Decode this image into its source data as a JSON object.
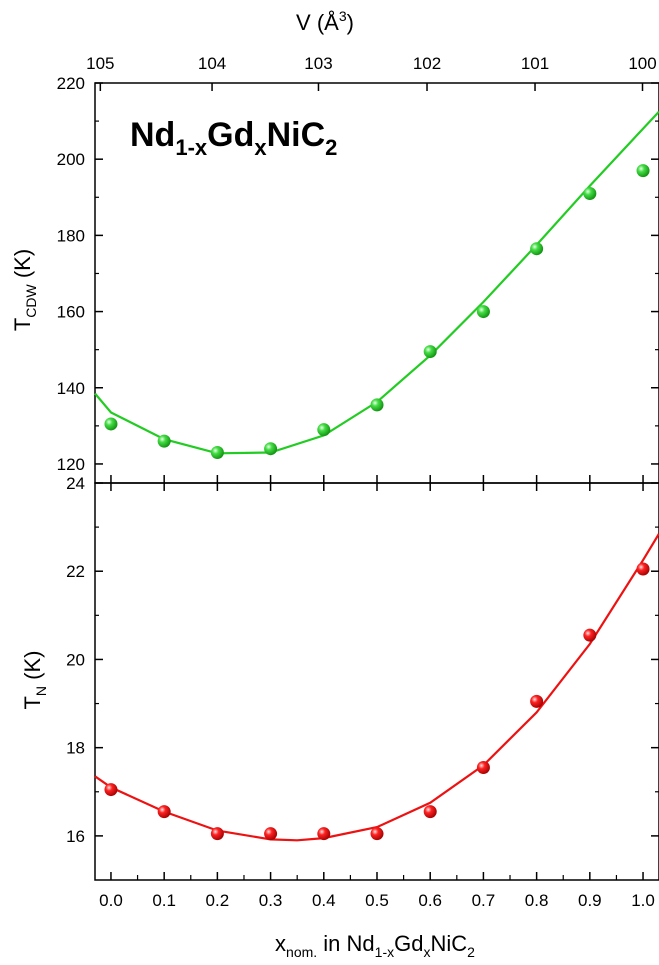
{
  "chart_data": [
    {
      "type": "scatter",
      "panel": "top",
      "title_main": "Nd",
      "title_sub1": "1-x",
      "title_mid": "Gd",
      "title_sub2": "x",
      "title_end": "NiC",
      "title_sub3": "2",
      "ylabel_main": "T",
      "ylabel_sub": "CDW",
      "ylabel_unit": " (K)",
      "top_axis_label_main": "V (Å",
      "top_axis_label_sup": "3",
      "top_axis_label_end": ")",
      "top_ticks": [
        {
          "label": "105",
          "x": -0.02
        },
        {
          "label": "104",
          "x": 0.19
        },
        {
          "label": "103",
          "x": 0.39
        },
        {
          "label": "102",
          "x": 0.594
        },
        {
          "label": "101",
          "x": 0.797
        },
        {
          "label": "100",
          "x": 0.999
        }
      ],
      "ylim": [
        115,
        220
      ],
      "yticks": [
        120,
        140,
        160,
        180,
        200,
        220
      ],
      "color": "#22cc22",
      "series": [
        {
          "x": [
            0.0,
            0.1,
            0.2,
            0.3,
            0.4,
            0.5,
            0.6,
            0.7,
            0.8,
            0.9,
            1.0
          ],
          "y": [
            130.5,
            126,
            123,
            124,
            129,
            135.5,
            149.5,
            160,
            176.5,
            191,
            197
          ]
        }
      ],
      "fit": {
        "x": [
          -0.03,
          0.0,
          0.1,
          0.2,
          0.3,
          0.4,
          0.5,
          0.6,
          0.7,
          0.8,
          0.9,
          1.0,
          1.03
        ],
        "y": [
          138.5,
          133.5,
          126.5,
          122.8,
          123.0,
          127.5,
          136.3,
          148.5,
          162.5,
          177.5,
          193.0,
          208.0,
          212.5
        ]
      }
    },
    {
      "type": "scatter",
      "panel": "bottom",
      "ylabel_main": "T",
      "ylabel_sub": "N",
      "ylabel_unit": " (K)",
      "xlabel_main": "x",
      "xlabel_sub": "nom.",
      "xlabel_mid": " in Nd",
      "xlabel_sub2": "1-x",
      "xlabel_gd": "Gd",
      "xlabel_sub3": "x",
      "xlabel_end": "NiC",
      "xlabel_sub4": "2",
      "xlim": [
        -0.03,
        1.03
      ],
      "xticks": [
        "0.0",
        "0.1",
        "0.2",
        "0.3",
        "0.4",
        "0.5",
        "0.6",
        "0.7",
        "0.8",
        "0.9",
        "1.0"
      ],
      "ylim": [
        15,
        24
      ],
      "yticks": [
        16,
        18,
        20,
        22,
        24
      ],
      "color": "#ee1111",
      "series": [
        {
          "x": [
            0.0,
            0.1,
            0.2,
            0.3,
            0.4,
            0.5,
            0.6,
            0.7,
            0.8,
            0.9,
            1.0
          ],
          "y": [
            17.05,
            16.55,
            16.05,
            16.05,
            16.05,
            16.05,
            16.55,
            17.55,
            19.05,
            20.55,
            22.05
          ]
        }
      ],
      "fit": {
        "x": [
          -0.03,
          0.0,
          0.1,
          0.2,
          0.3,
          0.35,
          0.4,
          0.5,
          0.6,
          0.7,
          0.8,
          0.9,
          1.0,
          1.03
        ],
        "y": [
          17.35,
          17.1,
          16.55,
          16.12,
          15.92,
          15.9,
          15.95,
          16.2,
          16.75,
          17.6,
          18.8,
          20.35,
          22.25,
          22.85
        ]
      }
    }
  ]
}
